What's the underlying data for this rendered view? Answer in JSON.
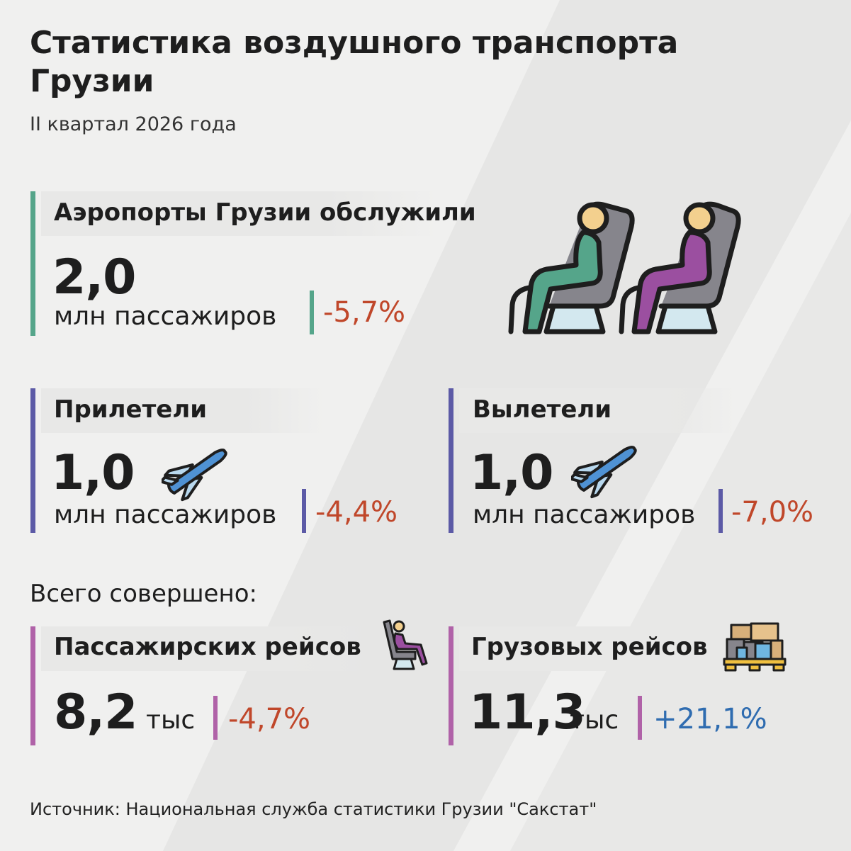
{
  "title": "Статистика воздушного транспорта Грузии",
  "subtitle": "II квартал 2026 года",
  "served": {
    "header": "Аэропорты Грузии обслужили",
    "value": "2,0",
    "unit": "млн пассажиров",
    "change": "-5,7%"
  },
  "arrived": {
    "header": "Прилетели",
    "value": "1,0",
    "unit": "млн пассажиров",
    "change": "-4,4%"
  },
  "departed": {
    "header": "Вылетели",
    "value": "1,0",
    "unit": "млн пассажиров",
    "change": "-7,0%"
  },
  "total_label": "Всего совершено:",
  "passenger_flights": {
    "header": "Пассажирских рейсов",
    "value": "8,2",
    "unit": "тыс",
    "change": "-4,7%"
  },
  "cargo_flights": {
    "header": "Грузовых рейсов",
    "value": "11,3",
    "unit": "тыс",
    "change": "+21,1%"
  },
  "source": "Источник: Национальная служба статистики Грузии \"Сакстат\"",
  "colors": {
    "green": "#55a58a",
    "blue_violet": "#5c5aa6",
    "purple": "#b062a8",
    "negative": "#c0472a",
    "positive": "#2f6cb0"
  },
  "icons": [
    "passenger-seats-icon",
    "airplane-icon",
    "seated-passenger-icon",
    "cargo-pallet-icon"
  ]
}
